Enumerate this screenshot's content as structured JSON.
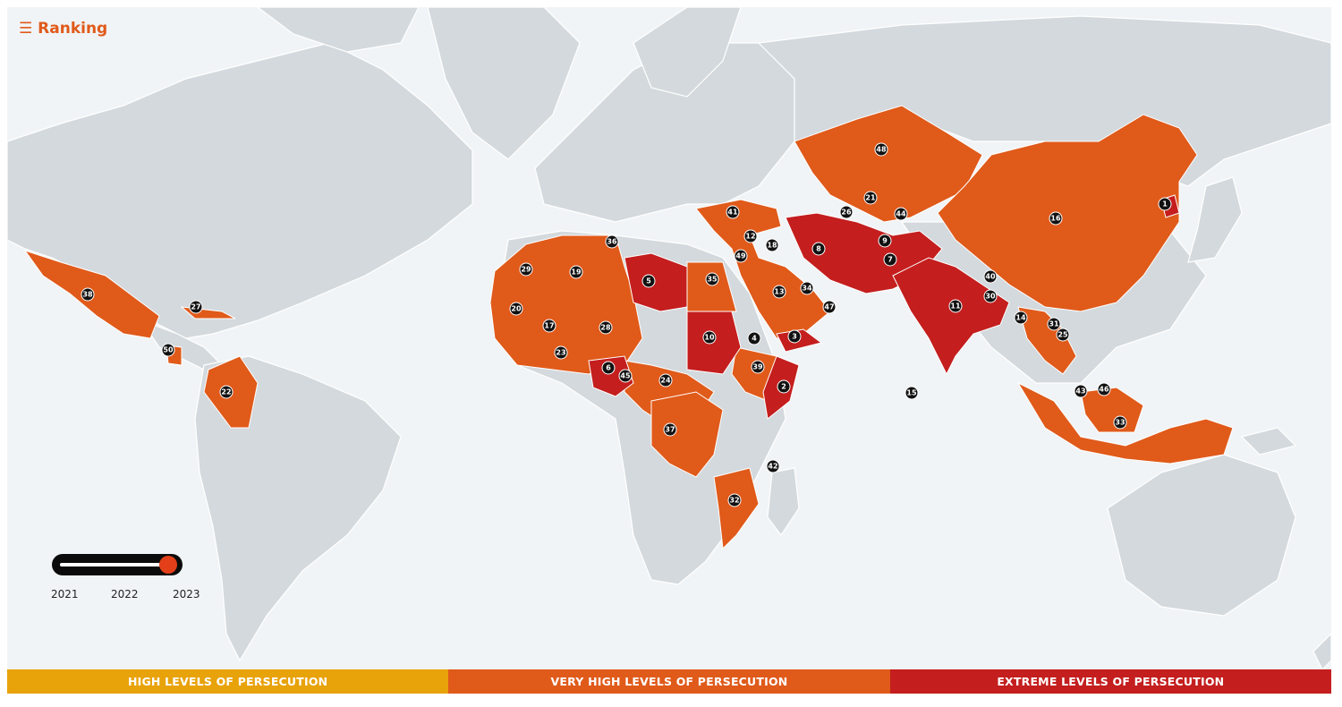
{
  "header": {
    "menu_icon": "hamburger-icon",
    "ranking_label": "☰ Ranking"
  },
  "timeline": {
    "years": [
      "2021",
      "2022",
      "2023"
    ],
    "selected_year": "2023"
  },
  "legend": {
    "high_label": "HIGH LEVELS OF PERSECUTION",
    "very_high_label": "VERY HIGH LEVELS OF PERSECUTION",
    "extreme_label": "EXTREME LEVELS OF PERSECUTION",
    "colors": {
      "high": "#e8a20a",
      "very_high": "#e05a1a",
      "extreme": "#c41e1e"
    }
  },
  "ranks": [
    "1",
    "2",
    "3",
    "4",
    "5",
    "6",
    "7",
    "8",
    "9",
    "10",
    "11",
    "12",
    "13",
    "14",
    "15",
    "16",
    "17",
    "18",
    "19",
    "20",
    "21",
    "22",
    "23",
    "24",
    "25",
    "26",
    "27",
    "28",
    "29",
    "30",
    "31",
    "32",
    "33",
    "34",
    "35",
    "36",
    "37",
    "38",
    "39",
    "40",
    "41",
    "42",
    "43",
    "44",
    "45",
    "46",
    "47",
    "48",
    "49",
    "50"
  ]
}
